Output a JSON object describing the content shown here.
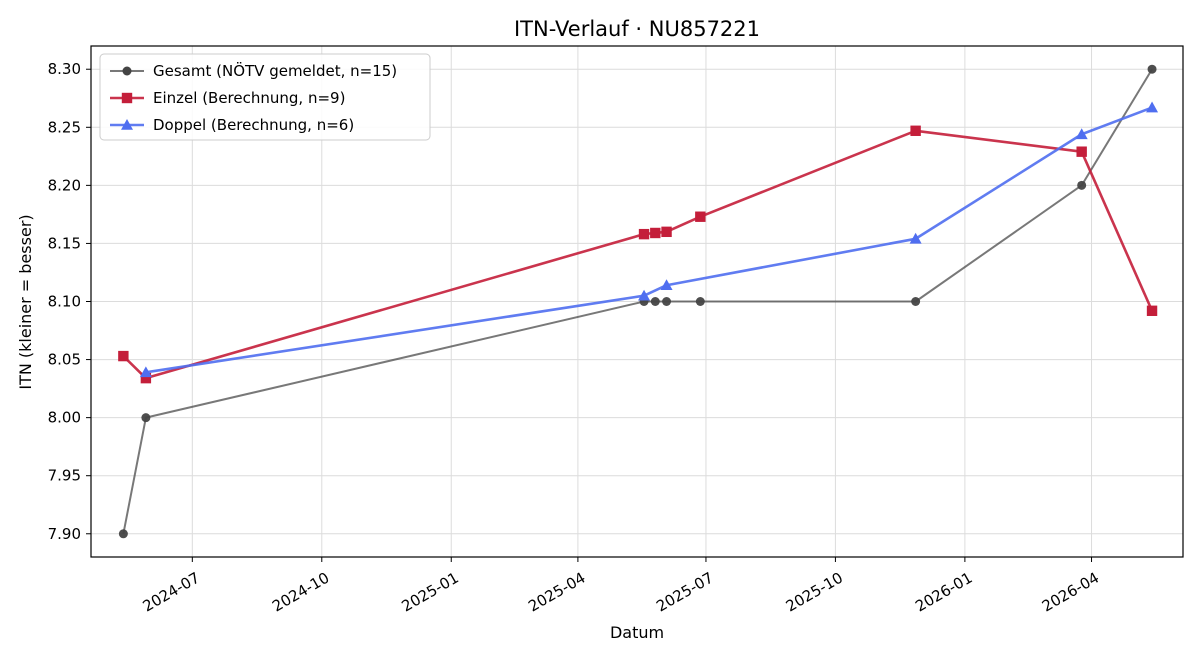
{
  "chart_data": {
    "type": "line",
    "title": "ITN-Verlauf · NU857221",
    "xlabel": "Datum",
    "ylabel": "ITN  (kleiner = besser)",
    "x_type": "date",
    "xlim": [
      "2024-04-20",
      "2026-06-05"
    ],
    "ylim": [
      7.88,
      8.32
    ],
    "x_ticks": [
      "2024-07-01",
      "2024-10-01",
      "2025-01-01",
      "2025-04-01",
      "2025-07-01",
      "2025-10-01",
      "2026-01-01",
      "2026-04-01"
    ],
    "x_tick_labels": [
      "2024-07",
      "2024-10",
      "2025-01",
      "2025-04",
      "2025-07",
      "2025-10",
      "2026-01",
      "2026-04"
    ],
    "y_ticks": [
      7.9,
      7.95,
      8.0,
      8.05,
      8.1,
      8.15,
      8.2,
      8.25,
      8.3
    ],
    "y_tick_labels": [
      "7.90",
      "7.95",
      "8.00",
      "8.05",
      "8.10",
      "8.15",
      "8.20",
      "8.25",
      "8.30"
    ],
    "grid": true,
    "legend_position": "top-left",
    "series": [
      {
        "name": "Gesamt (NÖTV gemeldet, n=15)",
        "color": "#444444",
        "marker": "circle",
        "points": [
          {
            "x": "2024-05-13",
            "y": 7.9
          },
          {
            "x": "2024-05-29",
            "y": 8.0
          },
          {
            "x": "2025-05-18",
            "y": 8.1
          },
          {
            "x": "2025-05-26",
            "y": 8.1
          },
          {
            "x": "2025-06-03",
            "y": 8.1
          },
          {
            "x": "2025-06-27",
            "y": 8.1
          },
          {
            "x": "2025-11-27",
            "y": 8.1
          },
          {
            "x": "2026-03-25",
            "y": 8.2
          },
          {
            "x": "2026-05-14",
            "y": 8.3
          }
        ]
      },
      {
        "name": "Einzel (Berechnung, n=9)",
        "color": "#c41e3a",
        "marker": "square",
        "points": [
          {
            "x": "2024-05-13",
            "y": 8.053
          },
          {
            "x": "2024-05-29",
            "y": 8.034
          },
          {
            "x": "2025-05-18",
            "y": 8.158
          },
          {
            "x": "2025-05-26",
            "y": 8.159
          },
          {
            "x": "2025-06-03",
            "y": 8.16
          },
          {
            "x": "2025-06-27",
            "y": 8.173
          },
          {
            "x": "2025-11-27",
            "y": 8.247
          },
          {
            "x": "2026-03-25",
            "y": 8.229
          },
          {
            "x": "2026-05-14",
            "y": 8.092
          }
        ]
      },
      {
        "name": "Doppel (Berechnung, n=6)",
        "color": "#4f6ef0",
        "marker": "triangle",
        "points": [
          {
            "x": "2024-05-29",
            "y": 8.039
          },
          {
            "x": "2025-05-18",
            "y": 8.105
          },
          {
            "x": "2025-06-03",
            "y": 8.114
          },
          {
            "x": "2025-11-27",
            "y": 8.154
          },
          {
            "x": "2026-03-25",
            "y": 8.244
          },
          {
            "x": "2026-05-14",
            "y": 8.267
          }
        ]
      }
    ]
  }
}
